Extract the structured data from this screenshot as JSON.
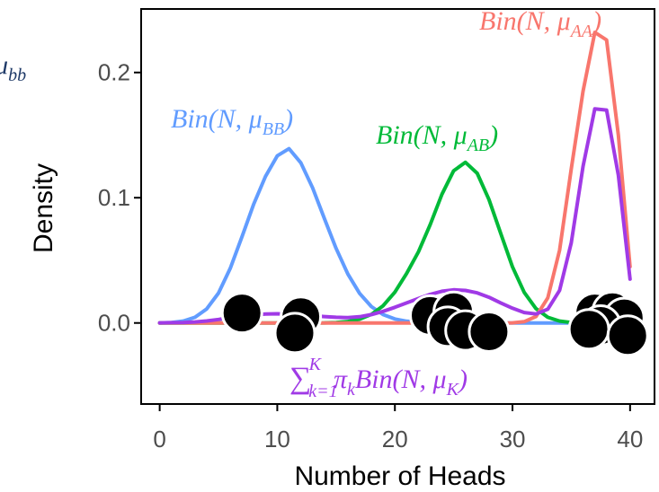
{
  "chart_data": {
    "type": "line",
    "xlabel": "Number of Heads",
    "ylabel": "Density",
    "xlim": [
      -1.5,
      42
    ],
    "ylim": [
      -0.064,
      0.25
    ],
    "x_ticks": [
      0,
      10,
      20,
      30,
      40
    ],
    "y_ticks": [
      0.0,
      0.1,
      0.2
    ],
    "y_tick_labels": [
      "0.0",
      "0.1",
      "0.2"
    ],
    "grid": false,
    "cropped_left_label": {
      "base": "μ",
      "sub": "bb"
    },
    "series": [
      {
        "label": {
          "base": "Bin(N, μ",
          "sub": "BB",
          "close": ")"
        },
        "color": "#619cff",
        "x": [
          0,
          1,
          2,
          3,
          4,
          5,
          6,
          7,
          8,
          9,
          10,
          11,
          12,
          13,
          14,
          15,
          16,
          17,
          18,
          19,
          20,
          21,
          22,
          23,
          24,
          25,
          26,
          27,
          28,
          29,
          30,
          31,
          32,
          33,
          34,
          35,
          36,
          37,
          38,
          39,
          40
        ],
        "y": [
          0.0001,
          0.0004,
          0.0015,
          0.0045,
          0.0112,
          0.0238,
          0.0436,
          0.0689,
          0.0951,
          0.117,
          0.1334,
          0.1392,
          0.1279,
          0.1079,
          0.0836,
          0.0596,
          0.0391,
          0.0236,
          0.0131,
          0.0067,
          0.0032,
          0.0014,
          0.0006,
          0.0002,
          0.0001,
          0,
          0,
          0,
          0,
          0,
          0,
          0,
          0,
          0,
          0,
          0,
          0,
          0,
          0,
          0,
          0
        ]
      },
      {
        "label": {
          "base": "Bin(N, μ",
          "sub": "AB",
          "close": ")"
        },
        "color": "#00ba38",
        "x": [
          0,
          1,
          2,
          3,
          4,
          5,
          6,
          7,
          8,
          9,
          10,
          11,
          12,
          13,
          14,
          15,
          16,
          17,
          18,
          19,
          20,
          21,
          22,
          23,
          24,
          25,
          26,
          27,
          28,
          29,
          30,
          31,
          32,
          33,
          34,
          35,
          36,
          37,
          38,
          39,
          40
        ],
        "y": [
          0,
          0,
          0,
          0,
          0,
          0,
          0,
          0,
          0,
          0,
          0,
          0,
          0,
          0,
          0.0001,
          0.0004,
          0.0012,
          0.003,
          0.0068,
          0.0137,
          0.0246,
          0.0395,
          0.0567,
          0.0785,
          0.1028,
          0.1215,
          0.1283,
          0.1195,
          0.0985,
          0.0714,
          0.0448,
          0.0244,
          0.0114,
          0.0045,
          0.0015,
          0.0004,
          0.0001,
          0,
          0,
          0,
          0
        ]
      },
      {
        "label": {
          "base": "Bin(N, μ",
          "sub": "AA",
          "close": ")"
        },
        "color": "#f8766d",
        "x": [
          0,
          1,
          2,
          3,
          4,
          5,
          6,
          7,
          8,
          9,
          10,
          11,
          12,
          13,
          14,
          15,
          16,
          17,
          18,
          19,
          20,
          21,
          22,
          23,
          24,
          25,
          26,
          27,
          28,
          29,
          30,
          31,
          32,
          33,
          34,
          35,
          36,
          37,
          38,
          39,
          40
        ],
        "y": [
          0,
          0,
          0,
          0,
          0,
          0,
          0,
          0,
          0,
          0,
          0,
          0,
          0,
          0,
          0,
          0,
          0,
          0,
          0,
          0,
          0,
          0,
          0,
          0,
          0,
          0,
          0,
          0,
          0,
          0,
          0.0001,
          0.001,
          0.0052,
          0.02,
          0.058,
          0.123,
          0.185,
          0.232,
          0.226,
          0.15,
          0.045
        ]
      },
      {
        "label": {
          "sum": "∑",
          "sub": "k=1",
          "sup": "K",
          "rest": "π",
          "rest_sub": "k",
          "tail": "Bin(N, μ",
          "tail_sub": "K",
          "close": ")"
        },
        "color": "#a03ae6",
        "x": [
          0,
          1,
          2,
          3,
          4,
          5,
          6,
          7,
          8,
          9,
          10,
          11,
          12,
          13,
          14,
          15,
          16,
          17,
          18,
          19,
          20,
          21,
          22,
          23,
          24,
          25,
          26,
          27,
          28,
          29,
          30,
          31,
          32,
          33,
          34,
          35,
          36,
          37,
          38,
          39,
          40
        ],
        "y": [
          0.0001,
          0.0002,
          0.0004,
          0.0008,
          0.0016,
          0.0028,
          0.0043,
          0.0055,
          0.0065,
          0.0071,
          0.0073,
          0.007,
          0.0065,
          0.0058,
          0.0051,
          0.0045,
          0.0043,
          0.005,
          0.0067,
          0.0093,
          0.0125,
          0.016,
          0.0195,
          0.0228,
          0.0253,
          0.0265,
          0.026,
          0.024,
          0.0205,
          0.016,
          0.0118,
          0.0083,
          0.0072,
          0.011,
          0.026,
          0.064,
          0.125,
          0.171,
          0.17,
          0.118,
          0.035
        ]
      }
    ],
    "points": [
      {
        "x": 7,
        "y": 0.008
      },
      {
        "x": 12,
        "y": 0.005
      },
      {
        "x": 11.5,
        "y": -0.008
      },
      {
        "x": 23,
        "y": 0.006
      },
      {
        "x": 25,
        "y": 0.009
      },
      {
        "x": 24.5,
        "y": -0.003
      },
      {
        "x": 26,
        "y": -0.006
      },
      {
        "x": 28,
        "y": -0.007
      },
      {
        "x": 37,
        "y": 0.008
      },
      {
        "x": 38.5,
        "y": 0.009
      },
      {
        "x": 39.5,
        "y": 0.004
      },
      {
        "x": 37.5,
        "y": -0.002
      },
      {
        "x": 36.5,
        "y": -0.005
      },
      {
        "x": 39.8,
        "y": -0.01
      }
    ],
    "point_color": "#000000",
    "point_stroke": "#ffffff"
  }
}
